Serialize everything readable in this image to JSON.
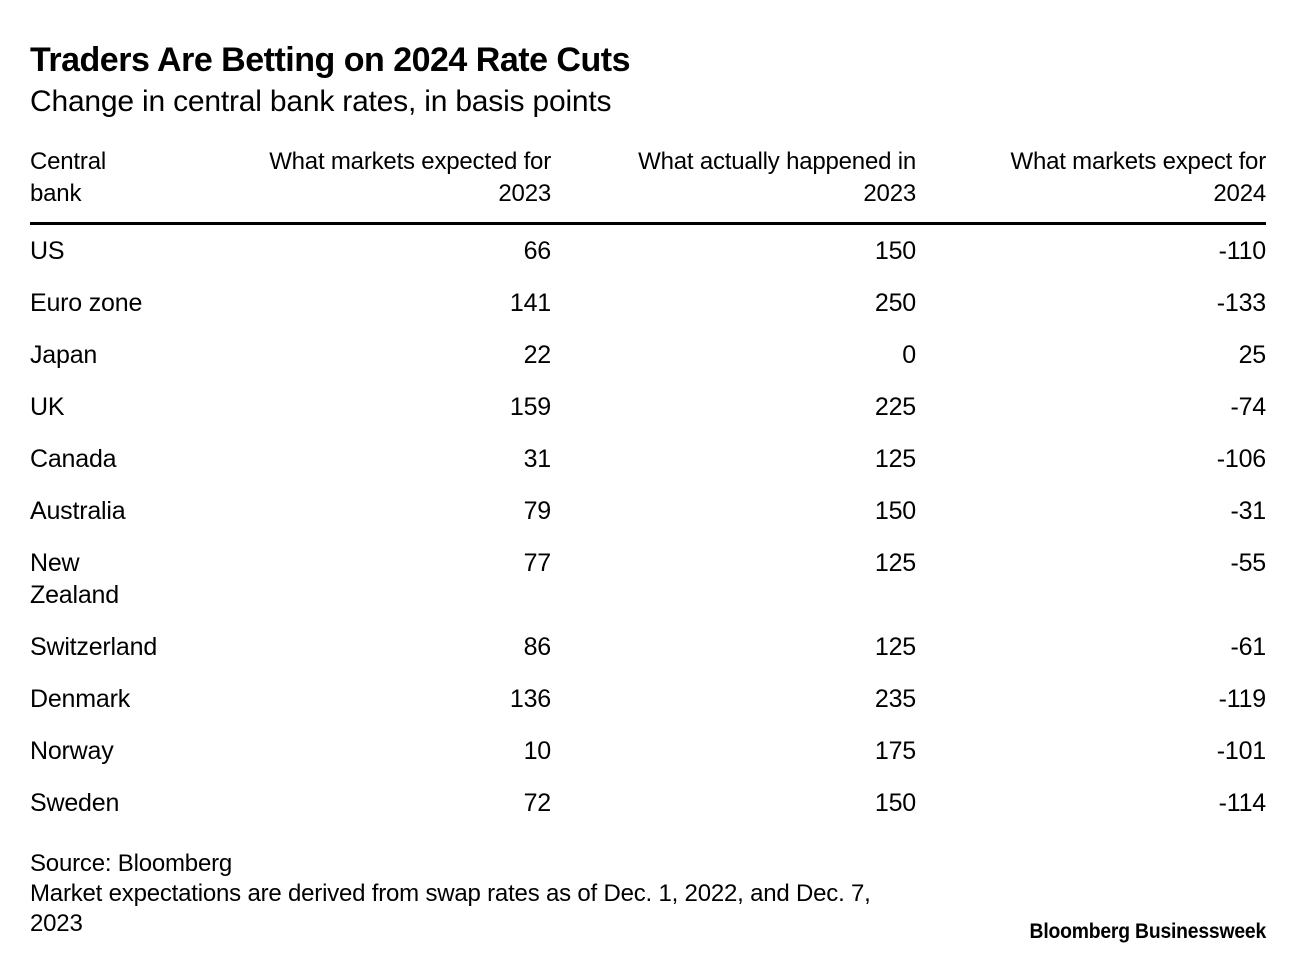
{
  "colors": {
    "background": "#ffffff",
    "text": "#000000",
    "rule": "#000000"
  },
  "header": {
    "title": "Traders Are Betting on 2024 Rate Cuts",
    "subtitle": "Change in central bank rates, in basis points"
  },
  "chart_data": {
    "type": "table",
    "title": "Traders Are Betting on 2024 Rate Cuts",
    "subtitle": "Change in central bank rates, in basis points",
    "unit": "basis points",
    "columns": [
      "Central bank",
      "What markets expected for 2023",
      "What actually happened in 2023",
      "What markets expect for 2024"
    ],
    "rows": [
      [
        "US",
        66,
        150,
        -110
      ],
      [
        "Euro zone",
        141,
        250,
        -133
      ],
      [
        "Japan",
        22,
        0,
        25
      ],
      [
        "UK",
        159,
        225,
        -74
      ],
      [
        "Canada",
        31,
        125,
        -106
      ],
      [
        "Australia",
        79,
        150,
        -31
      ],
      [
        "New Zealand",
        77,
        125,
        -55
      ],
      [
        "Switzerland",
        86,
        125,
        -61
      ],
      [
        "Denmark",
        136,
        235,
        -119
      ],
      [
        "Norway",
        10,
        175,
        -101
      ],
      [
        "Sweden",
        72,
        150,
        -114
      ]
    ]
  },
  "table": {
    "header_lines": [
      [
        "Central",
        "bank"
      ],
      [
        "What markets expected for",
        "2023"
      ],
      [
        "What actually happened in",
        "2023"
      ],
      [
        "What markets expect for",
        "2024"
      ]
    ]
  },
  "footer": {
    "source": "Source: Bloomberg",
    "note": "Market expectations are derived from swap rates as of Dec. 1, 2022, and Dec. 7, 2023",
    "brand": "Bloomberg Businessweek"
  }
}
